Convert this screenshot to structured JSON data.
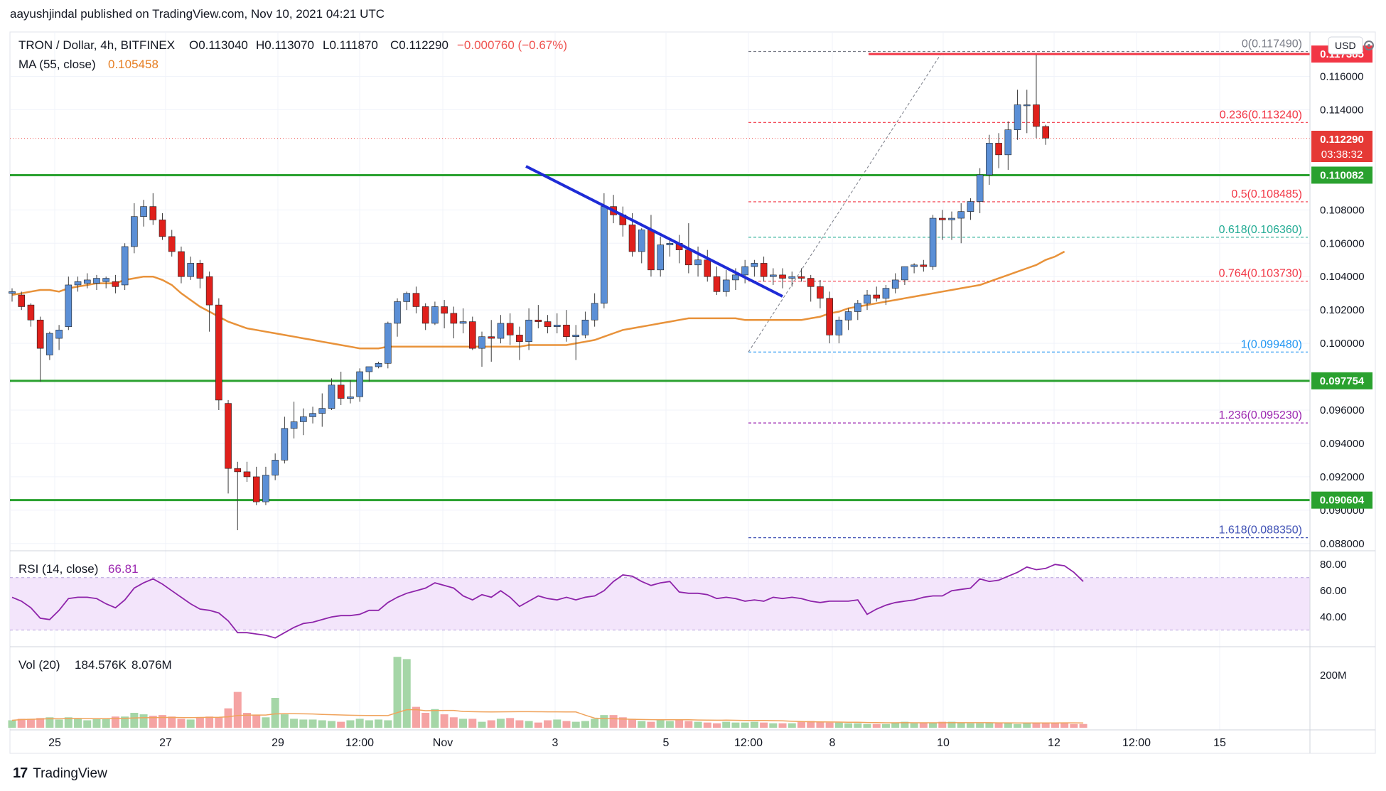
{
  "publisher_line": "aayushjindal published on TradingView.com, Nov 10, 2021 04:21 UTC",
  "brand": {
    "mark": "17",
    "name": "TradingView"
  },
  "legend": {
    "symbol": "TRON / Dollar, 4h, BITFINEX",
    "open": "O0.113040",
    "high": "H0.113070",
    "low": "L0.111870",
    "close": "C0.112290",
    "change": "−0.000760 (−0.67%)",
    "ma_label": "MA (55, close)",
    "ma_value": "0.105458",
    "rsi_label": "RSI (14, close)",
    "rsi_value": "66.81",
    "vol_label": "Vol (20)",
    "vol_value1": "184.576K",
    "vol_value2": "8.076M"
  },
  "currency": "USD",
  "chart_data": {
    "type": "candlestick",
    "title": "TRON / Dollar, 4h, BITFINEX",
    "y_axis_ticks": [
      "0.116000",
      "0.114000",
      "0.108000",
      "0.106000",
      "0.104000",
      "0.102000",
      "0.100000",
      "0.096000",
      "0.094000",
      "0.092000",
      "0.090000",
      "0.088000"
    ],
    "x_axis_ticks": [
      "25",
      "27",
      "29",
      "12:00",
      "Nov",
      "3",
      "5",
      "12:00",
      "8",
      "10",
      "12",
      "12:00",
      "15"
    ],
    "price_labels": {
      "last": "0.112290",
      "countdown": "03:38:32",
      "top": "0.117385",
      "support_1": "0.110082",
      "support_2": "0.097754",
      "support_3": "0.090604"
    },
    "horizontal_levels": [
      0.110082,
      0.097754,
      0.090604
    ],
    "fibonacci": [
      {
        "label": "0(0.117490)",
        "value": 0.11749
      },
      {
        "label": "0.236(0.113240)",
        "value": 0.11324
      },
      {
        "label": "0.5(0.108485)",
        "value": 0.108485
      },
      {
        "label": "0.618(0.106360)",
        "value": 0.10636
      },
      {
        "label": "0.764(0.103730)",
        "value": 0.10373
      },
      {
        "label": "1(0.099480)",
        "value": 0.09948
      },
      {
        "label": "1.236(0.095230)",
        "value": 0.09523
      },
      {
        "label": "1.618(0.088350)",
        "value": 0.08835
      }
    ],
    "candles": [
      [
        0.103,
        0.1033,
        0.1025,
        0.1031
      ],
      [
        0.1029,
        0.1031,
        0.102,
        0.1022
      ],
      [
        0.1023,
        0.1024,
        0.101,
        0.1014
      ],
      [
        0.1014,
        0.1016,
        0.0977,
        0.0997
      ],
      [
        0.0993,
        0.1007,
        0.099,
        0.1006
      ],
      [
        0.1003,
        0.1011,
        0.0996,
        0.1008
      ],
      [
        0.101,
        0.104,
        0.1008,
        0.1035
      ],
      [
        0.1035,
        0.104,
        0.1031,
        0.1037
      ],
      [
        0.1036,
        0.1042,
        0.1033,
        0.1038
      ],
      [
        0.1036,
        0.1041,
        0.1032,
        0.1039
      ],
      [
        0.1037,
        0.104,
        0.1033,
        0.1039
      ],
      [
        0.1037,
        0.1041,
        0.103,
        0.1034
      ],
      [
        0.1035,
        0.106,
        0.1032,
        0.1058
      ],
      [
        0.1058,
        0.1084,
        0.1054,
        0.1076
      ],
      [
        0.1076,
        0.1086,
        0.107,
        0.1082
      ],
      [
        0.1082,
        0.109,
        0.1071,
        0.1074
      ],
      [
        0.1074,
        0.1078,
        0.1062,
        0.1064
      ],
      [
        0.1064,
        0.1068,
        0.1052,
        0.1055
      ],
      [
        0.1055,
        0.1058,
        0.1036,
        0.104
      ],
      [
        0.104,
        0.1052,
        0.1038,
        0.1048
      ],
      [
        0.1048,
        0.105,
        0.1033,
        0.1039
      ],
      [
        0.104,
        0.1043,
        0.1007,
        0.1023
      ],
      [
        0.1023,
        0.1027,
        0.096,
        0.0966
      ],
      [
        0.0964,
        0.0966,
        0.091,
        0.0925
      ],
      [
        0.0925,
        0.0929,
        0.0888,
        0.0923
      ],
      [
        0.0923,
        0.0929,
        0.0917,
        0.092
      ],
      [
        0.092,
        0.0926,
        0.0903,
        0.0905
      ],
      [
        0.0905,
        0.0926,
        0.0903,
        0.0921
      ],
      [
        0.0921,
        0.0934,
        0.0918,
        0.093
      ],
      [
        0.093,
        0.0956,
        0.0928,
        0.0949
      ],
      [
        0.0949,
        0.0965,
        0.0943,
        0.0953
      ],
      [
        0.0953,
        0.0961,
        0.0945,
        0.0956
      ],
      [
        0.0956,
        0.0962,
        0.0952,
        0.0958
      ],
      [
        0.0958,
        0.097,
        0.095,
        0.0961
      ],
      [
        0.0961,
        0.0979,
        0.096,
        0.0975
      ],
      [
        0.0975,
        0.0983,
        0.0963,
        0.0967
      ],
      [
        0.0967,
        0.0978,
        0.0964,
        0.0968
      ],
      [
        0.0968,
        0.0985,
        0.0965,
        0.0983
      ],
      [
        0.0983,
        0.0986,
        0.0977,
        0.0986
      ],
      [
        0.0986,
        0.0989,
        0.0985,
        0.0988
      ],
      [
        0.0988,
        0.1013,
        0.0985,
        0.1012
      ],
      [
        0.1012,
        0.1027,
        0.1004,
        0.1025
      ],
      [
        0.1025,
        0.1031,
        0.102,
        0.103
      ],
      [
        0.103,
        0.1034,
        0.1018,
        0.1022
      ],
      [
        0.1022,
        0.1024,
        0.1008,
        0.1012
      ],
      [
        0.1012,
        0.1025,
        0.1011,
        0.1022
      ],
      [
        0.1022,
        0.1026,
        0.1009,
        0.1018
      ],
      [
        0.1018,
        0.1022,
        0.1003,
        0.1012
      ],
      [
        0.1012,
        0.1021,
        0.1006,
        0.1013
      ],
      [
        0.1013,
        0.1016,
        0.0996,
        0.0997
      ],
      [
        0.0997,
        0.1007,
        0.0986,
        0.1004
      ],
      [
        0.1004,
        0.1014,
        0.0989,
        0.1003
      ],
      [
        0.1003,
        0.1017,
        0.1,
        0.1012
      ],
      [
        0.1012,
        0.1018,
        0.0999,
        0.1005
      ],
      [
        0.1005,
        0.101,
        0.099,
        0.1001
      ],
      [
        0.1001,
        0.1021,
        0.0996,
        0.1014
      ],
      [
        0.1014,
        0.1023,
        0.1009,
        0.1013
      ],
      [
        0.1013,
        0.1017,
        0.1006,
        0.101
      ],
      [
        0.101,
        0.1018,
        0.1006,
        0.1011
      ],
      [
        0.1011,
        0.102,
        0.1001,
        0.1004
      ],
      [
        0.1004,
        0.1011,
        0.099,
        0.1005
      ],
      [
        0.1005,
        0.1019,
        0.1003,
        0.1014
      ],
      [
        0.1014,
        0.103,
        0.101,
        0.1024
      ],
      [
        0.1024,
        0.109,
        0.1021,
        0.1082
      ],
      [
        0.1082,
        0.1089,
        0.1072,
        0.1077
      ],
      [
        0.1077,
        0.1082,
        0.1064,
        0.1071
      ],
      [
        0.1071,
        0.1078,
        0.1052,
        0.1055
      ],
      [
        0.1055,
        0.1069,
        0.1048,
        0.1068
      ],
      [
        0.1068,
        0.1077,
        0.104,
        0.1044
      ],
      [
        0.1044,
        0.1064,
        0.104,
        0.1059
      ],
      [
        0.1059,
        0.1063,
        0.1052,
        0.106
      ],
      [
        0.106,
        0.1065,
        0.1048,
        0.1056
      ],
      [
        0.1056,
        0.1072,
        0.1042,
        0.1047
      ],
      [
        0.1047,
        0.1058,
        0.104,
        0.105
      ],
      [
        0.105,
        0.1056,
        0.1037,
        0.104
      ],
      [
        0.104,
        0.1046,
        0.1029,
        0.1031
      ],
      [
        0.1031,
        0.1044,
        0.1028,
        0.1038
      ],
      [
        0.1038,
        0.1045,
        0.1032,
        0.1041
      ],
      [
        0.1041,
        0.105,
        0.1036,
        0.1046
      ],
      [
        0.1046,
        0.105,
        0.104,
        0.1048
      ],
      [
        0.1048,
        0.1052,
        0.1037,
        0.104
      ],
      [
        0.104,
        0.1045,
        0.1035,
        0.1041
      ],
      [
        0.1041,
        0.1045,
        0.1033,
        0.1039
      ],
      [
        0.1039,
        0.1043,
        0.1034,
        0.104
      ],
      [
        0.104,
        0.1045,
        0.1037,
        0.1039
      ],
      [
        0.1039,
        0.1041,
        0.1025,
        0.1034
      ],
      [
        0.1034,
        0.1038,
        0.1021,
        0.1027
      ],
      [
        0.1027,
        0.1031,
        0.1,
        0.1005
      ],
      [
        0.1005,
        0.1016,
        0.1,
        0.1014
      ],
      [
        0.1014,
        0.1021,
        0.1008,
        0.1019
      ],
      [
        0.1019,
        0.1026,
        0.1014,
        0.1024
      ],
      [
        0.1024,
        0.1032,
        0.102,
        0.1029
      ],
      [
        0.1029,
        0.1034,
        0.1025,
        0.1027
      ],
      [
        0.1027,
        0.1035,
        0.1023,
        0.1033
      ],
      [
        0.1033,
        0.1042,
        0.103,
        0.1038
      ],
      [
        0.1038,
        0.1046,
        0.1035,
        0.1046
      ],
      [
        0.1046,
        0.1048,
        0.1042,
        0.1047
      ],
      [
        0.1047,
        0.105,
        0.1043,
        0.1046
      ],
      [
        0.1046,
        0.1077,
        0.1044,
        0.1075
      ],
      [
        0.1075,
        0.108,
        0.1062,
        0.1074
      ],
      [
        0.1074,
        0.1079,
        0.1062,
        0.1075
      ],
      [
        0.1075,
        0.1084,
        0.106,
        0.1079
      ],
      [
        0.1079,
        0.1087,
        0.1074,
        0.1085
      ],
      [
        0.1085,
        0.1105,
        0.1078,
        0.1101
      ],
      [
        0.1101,
        0.1125,
        0.1095,
        0.112
      ],
      [
        0.112,
        0.1126,
        0.1105,
        0.1113
      ],
      [
        0.1113,
        0.1133,
        0.1104,
        0.1128
      ],
      [
        0.1128,
        0.1152,
        0.1122,
        0.1143
      ],
      [
        0.1143,
        0.1152,
        0.1126,
        0.1143
      ],
      [
        0.1143,
        0.1173,
        0.1123,
        0.113
      ],
      [
        0.113,
        0.1131,
        0.1119,
        0.1123
      ]
    ],
    "ma55": [
      0.1029,
      0.103,
      0.1031,
      0.1032,
      0.1032,
      0.1031,
      0.1033,
      0.1034,
      0.1035,
      0.1036,
      0.1036,
      0.1036,
      0.1038,
      0.1039,
      0.104,
      0.104,
      0.1038,
      0.1035,
      0.103,
      0.1026,
      0.1022,
      0.1019,
      0.1016,
      0.1013,
      0.1011,
      0.1009,
      0.1008,
      0.1007,
      0.1006,
      0.1005,
      0.1004,
      0.1003,
      0.1002,
      0.1001,
      0.1,
      0.0999,
      0.0998,
      0.0997,
      0.0997,
      0.0997,
      0.0998,
      0.0998,
      0.0998,
      0.0998,
      0.0998,
      0.0998,
      0.0998,
      0.0998,
      0.0998,
      0.0998,
      0.0998,
      0.0998,
      0.0998,
      0.0998,
      0.0998,
      0.0999,
      0.0999,
      0.0999,
      0.0999,
      0.0999,
      0.1,
      0.1001,
      0.1002,
      0.1004,
      0.1006,
      0.1008,
      0.1009,
      0.101,
      0.1011,
      0.1012,
      0.1013,
      0.1014,
      0.1015,
      0.1015,
      0.1015,
      0.1015,
      0.1015,
      0.1015,
      0.1014,
      0.1014,
      0.1014,
      0.1014,
      0.1014,
      0.1014,
      0.1014,
      0.1015,
      0.1016,
      0.1018,
      0.1019,
      0.1021,
      0.1022,
      0.1023,
      0.1024,
      0.1025,
      0.1026,
      0.1027,
      0.1028,
      0.1029,
      0.103,
      0.1031,
      0.1032,
      0.1033,
      0.1034,
      0.1035,
      0.1037,
      0.1039,
      0.1041,
      0.1043,
      0.1045,
      0.1047,
      0.105,
      0.1052,
      0.1055
    ],
    "rsi": {
      "ticks": [
        "80.00",
        "60.00",
        "40.00"
      ],
      "band": [
        30,
        70
      ],
      "values": [
        55,
        52,
        47,
        39,
        38,
        45,
        54,
        55,
        55,
        54,
        50,
        47,
        53,
        62,
        66,
        69,
        65,
        60,
        55,
        50,
        46,
        45,
        43,
        37,
        28,
        28,
        27,
        26,
        24,
        28,
        32,
        35,
        36,
        38,
        40,
        41,
        41,
        42,
        45,
        45,
        51,
        55,
        58,
        60,
        62,
        66,
        64,
        62,
        56,
        53,
        57,
        55,
        60,
        55,
        48,
        52,
        56,
        54,
        53,
        55,
        53,
        55,
        56,
        60,
        67,
        72,
        71,
        67,
        64,
        66,
        67,
        59,
        58,
        58,
        57,
        54,
        55,
        54,
        52,
        53,
        52,
        55,
        54,
        55,
        54,
        52,
        51,
        52,
        52,
        52,
        53,
        42,
        46,
        49,
        51,
        52,
        53,
        55,
        56,
        56,
        60,
        61,
        62,
        69,
        67,
        68,
        71,
        74,
        78,
        76,
        77,
        80,
        79,
        74,
        67
      ]
    },
    "volume": {
      "ticks": [
        "200M"
      ],
      "values": [
        10,
        12,
        12,
        13,
        14,
        11,
        14,
        13,
        10,
        12,
        12,
        15,
        15,
        20,
        18,
        16,
        17,
        15,
        12,
        11,
        14,
        15,
        14,
        26,
        48,
        20,
        17,
        14,
        40,
        18,
        12,
        11,
        11,
        10,
        9,
        8,
        10,
        12,
        10,
        11,
        10,
        95,
        92,
        28,
        20,
        25,
        18,
        14,
        12,
        12,
        8,
        10,
        12,
        13,
        10,
        9,
        7,
        10,
        11,
        9,
        8,
        9,
        12,
        17,
        17,
        14,
        12,
        9,
        8,
        10,
        9,
        10,
        9,
        8,
        7,
        6,
        8,
        7,
        7,
        8,
        7,
        6,
        6,
        6,
        8,
        9,
        8,
        7,
        7,
        6,
        6,
        5,
        5,
        5,
        7,
        8,
        6,
        7,
        7,
        8,
        8,
        7,
        6,
        6,
        7,
        6,
        7,
        5,
        6,
        7,
        6,
        6,
        6,
        5,
        5
      ]
    }
  }
}
